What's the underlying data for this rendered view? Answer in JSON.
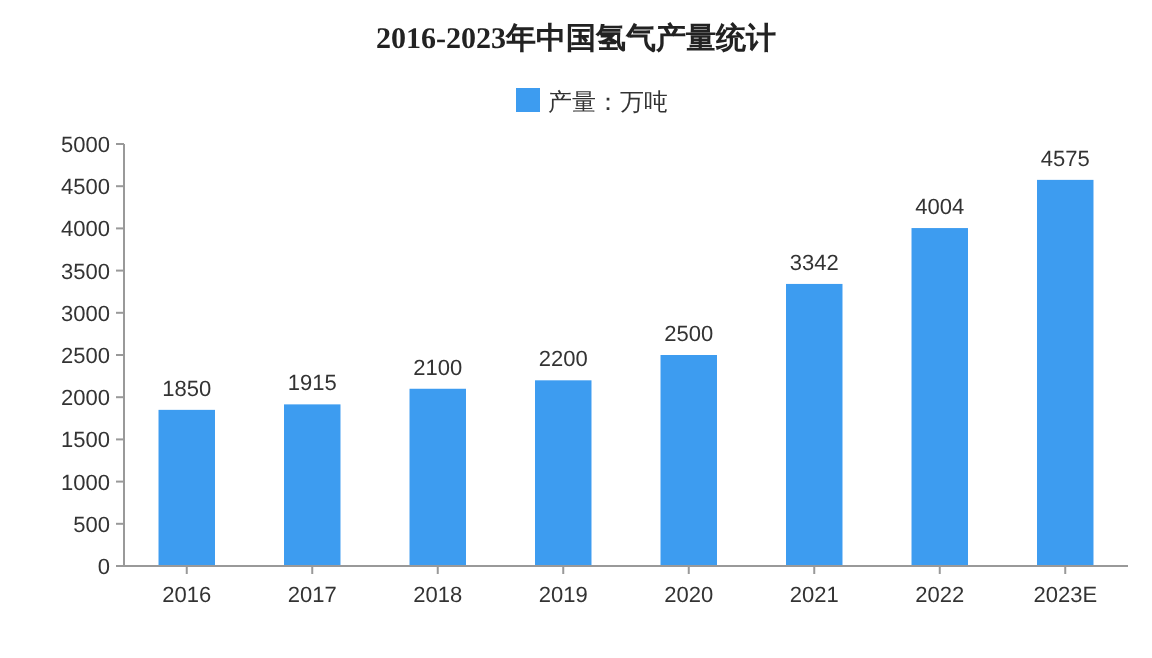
{
  "chart_data": {
    "type": "bar",
    "title": "2016-2023年中国氢气产量统计",
    "categories": [
      "2016",
      "2017",
      "2018",
      "2019",
      "2020",
      "2021",
      "2022",
      "2023E"
    ],
    "series": [
      {
        "name": "产量：万吨",
        "color": "#3d9cf0",
        "values": [
          1850,
          1915,
          2100,
          2200,
          2500,
          3342,
          4004,
          4575
        ]
      }
    ],
    "ylim": [
      0,
      5000
    ],
    "yticks": [
      0,
      500,
      1000,
      1500,
      2000,
      2500,
      3000,
      3500,
      4000,
      4500,
      5000
    ],
    "data_labels": true,
    "legend": "top",
    "grid": false
  }
}
